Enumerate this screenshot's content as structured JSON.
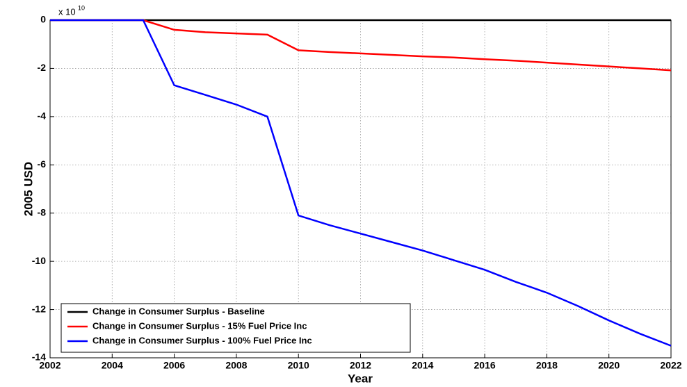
{
  "chart_data": {
    "type": "line",
    "xlabel": "Year",
    "ylabel": "2005 USD",
    "y_multiplier": {
      "base": "x 10",
      "exponent": "10"
    },
    "x": [
      2002,
      2003,
      2004,
      2005,
      2006,
      2007,
      2008,
      2009,
      2010,
      2011,
      2012,
      2013,
      2014,
      2015,
      2016,
      2017,
      2018,
      2019,
      2020,
      2021,
      2022
    ],
    "series": [
      {
        "name": "Change in Consumer Surplus - Baseline",
        "color": "#000000",
        "values": [
          0,
          0,
          0,
          0,
          0,
          0,
          0,
          0,
          0,
          0,
          0,
          0,
          0,
          0,
          0,
          0,
          0,
          0,
          0,
          0,
          0
        ]
      },
      {
        "name": "Change in Consumer Surplus - 15% Fuel Price Inc",
        "color": "#ff0000",
        "values": [
          0,
          0,
          0,
          0,
          -0.4,
          -0.5,
          -0.55,
          -0.6,
          -1.25,
          -1.32,
          -1.38,
          -1.44,
          -1.5,
          -1.55,
          -1.62,
          -1.68,
          -1.76,
          -1.84,
          -1.92,
          -2.0,
          -2.08
        ]
      },
      {
        "name": "Change in Consumer Surplus - 100% Fuel Price Inc",
        "color": "#0000ff",
        "values": [
          0,
          0,
          0,
          0,
          -2.7,
          -3.1,
          -3.5,
          -4.0,
          -8.1,
          -8.5,
          -8.85,
          -9.2,
          -9.55,
          -9.95,
          -10.35,
          -10.85,
          -11.3,
          -11.85,
          -12.45,
          -13.0,
          -13.5
        ]
      }
    ],
    "xlim": [
      2002,
      2022
    ],
    "xticks": [
      2002,
      2004,
      2006,
      2008,
      2010,
      2012,
      2014,
      2016,
      2018,
      2020,
      2022
    ],
    "ylim": [
      -14,
      0
    ],
    "yticks": [
      -14,
      -12,
      -10,
      -8,
      -6,
      -4,
      -2,
      0
    ],
    "grid": true,
    "legend": "lower left"
  }
}
